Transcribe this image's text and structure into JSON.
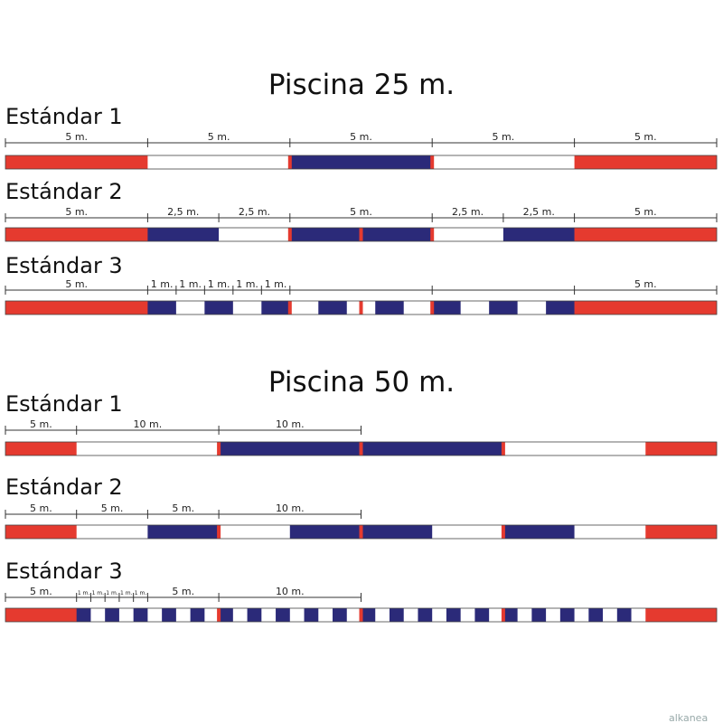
{
  "colors": {
    "red": "#e53a2f",
    "blue": "#2b2a79",
    "white": "#ffffff",
    "outline": "#444444"
  },
  "pool25": {
    "title": "Piscina 25 m.",
    "length_m": 25,
    "standards": [
      {
        "label": "Estándar 1",
        "dims": [
          {
            "from": 0,
            "to": 5,
            "text": "5 m."
          },
          {
            "from": 5,
            "to": 10,
            "text": "5 m."
          },
          {
            "from": 10,
            "to": 15,
            "text": "5 m."
          },
          {
            "from": 15,
            "to": 20,
            "text": "5 m."
          },
          {
            "from": 20,
            "to": 25,
            "text": "5 m."
          }
        ],
        "segments": [
          {
            "from": 0,
            "to": 5,
            "color": "red"
          },
          {
            "from": 5,
            "to": 10,
            "color": "white"
          },
          {
            "from": 10,
            "to": 15,
            "color": "blue"
          },
          {
            "from": 15,
            "to": 20,
            "color": "white"
          },
          {
            "from": 20,
            "to": 25,
            "color": "red"
          }
        ],
        "markers": [
          10,
          15
        ]
      },
      {
        "label": "Estándar 2",
        "dims": [
          {
            "from": 0,
            "to": 5,
            "text": "5 m."
          },
          {
            "from": 5,
            "to": 7.5,
            "text": "2,5 m."
          },
          {
            "from": 7.5,
            "to": 10,
            "text": "2,5 m."
          },
          {
            "from": 10,
            "to": 15,
            "text": "5 m."
          },
          {
            "from": 15,
            "to": 17.5,
            "text": "2,5 m."
          },
          {
            "from": 17.5,
            "to": 20,
            "text": "2,5 m."
          },
          {
            "from": 20,
            "to": 25,
            "text": "5 m."
          }
        ],
        "segments": [
          {
            "from": 0,
            "to": 5,
            "color": "red"
          },
          {
            "from": 5,
            "to": 7.5,
            "color": "blue"
          },
          {
            "from": 7.5,
            "to": 10,
            "color": "white"
          },
          {
            "from": 10,
            "to": 12.5,
            "color": "blue"
          },
          {
            "from": 12.5,
            "to": 15,
            "color": "blue"
          },
          {
            "from": 15,
            "to": 17.5,
            "color": "white"
          },
          {
            "from": 17.5,
            "to": 20,
            "color": "blue"
          },
          {
            "from": 20,
            "to": 25,
            "color": "red"
          }
        ],
        "markers": [
          10,
          12.5,
          15
        ]
      },
      {
        "label": "Estándar 3",
        "dims": [
          {
            "from": 0,
            "to": 5,
            "text": "5 m."
          },
          {
            "from": 5,
            "to": 6,
            "text": "1 m."
          },
          {
            "from": 6,
            "to": 7,
            "text": "1 m."
          },
          {
            "from": 7,
            "to": 8,
            "text": "1 m."
          },
          {
            "from": 8,
            "to": 9,
            "text": "1 m."
          },
          {
            "from": 9,
            "to": 10,
            "text": "1 m."
          },
          {
            "from": 10,
            "to": 15,
            "text": ""
          },
          {
            "from": 15,
            "to": 20,
            "text": ""
          },
          {
            "from": 20,
            "to": 25,
            "text": "5 m."
          }
        ],
        "segments": [
          {
            "from": 0,
            "to": 5,
            "color": "red"
          },
          {
            "from": 5,
            "to": 20,
            "pattern": "alt1",
            "first": "blue"
          },
          {
            "from": 20,
            "to": 25,
            "color": "red"
          }
        ],
        "markers": [
          10,
          12.5,
          15
        ]
      }
    ]
  },
  "pool50": {
    "title": "Piscina 50 m.",
    "length_m": 50,
    "standards": [
      {
        "label": "Estándar 1",
        "dims": [
          {
            "from": 0,
            "to": 5,
            "text": "5 m."
          },
          {
            "from": 5,
            "to": 15,
            "text": "10 m."
          },
          {
            "from": 15,
            "to": 25,
            "text": "10 m."
          }
        ],
        "segments": [
          {
            "from": 0,
            "to": 5,
            "color": "red"
          },
          {
            "from": 5,
            "to": 15,
            "color": "white"
          },
          {
            "from": 15,
            "to": 25,
            "color": "blue"
          },
          {
            "from": 25,
            "to": 35,
            "color": "blue"
          },
          {
            "from": 35,
            "to": 45,
            "color": "white"
          },
          {
            "from": 45,
            "to": 50,
            "color": "red"
          }
        ],
        "markers": [
          15,
          25,
          35
        ]
      },
      {
        "label": "Estándar 2",
        "dims": [
          {
            "from": 0,
            "to": 5,
            "text": "5 m."
          },
          {
            "from": 5,
            "to": 10,
            "text": "5 m."
          },
          {
            "from": 10,
            "to": 15,
            "text": "5 m."
          },
          {
            "from": 15,
            "to": 25,
            "text": "10 m."
          }
        ],
        "segments": [
          {
            "from": 0,
            "to": 5,
            "color": "red"
          },
          {
            "from": 5,
            "to": 10,
            "color": "white"
          },
          {
            "from": 10,
            "to": 15,
            "color": "blue"
          },
          {
            "from": 15,
            "to": 20,
            "color": "white"
          },
          {
            "from": 20,
            "to": 25,
            "color": "blue"
          },
          {
            "from": 25,
            "to": 30,
            "color": "blue"
          },
          {
            "from": 30,
            "to": 35,
            "color": "white"
          },
          {
            "from": 35,
            "to": 40,
            "color": "blue"
          },
          {
            "from": 40,
            "to": 45,
            "color": "white"
          },
          {
            "from": 45,
            "to": 50,
            "color": "red"
          }
        ],
        "markers": [
          15,
          25,
          35
        ]
      },
      {
        "label": "Estándar 3",
        "dims": [
          {
            "from": 0,
            "to": 5,
            "text": "5 m."
          },
          {
            "from": 5,
            "to": 6,
            "text": "1 m."
          },
          {
            "from": 6,
            "to": 7,
            "text": "1 m."
          },
          {
            "from": 7,
            "to": 8,
            "text": "1 m."
          },
          {
            "from": 8,
            "to": 9,
            "text": "1 m."
          },
          {
            "from": 9,
            "to": 10,
            "text": "1 m."
          },
          {
            "from": 10,
            "to": 15,
            "text": "5 m."
          },
          {
            "from": 15,
            "to": 25,
            "text": "10 m."
          }
        ],
        "segments": [
          {
            "from": 0,
            "to": 5,
            "color": "red"
          },
          {
            "from": 5,
            "to": 45,
            "pattern": "alt1",
            "first": "blue"
          },
          {
            "from": 45,
            "to": 50,
            "color": "red"
          }
        ],
        "markers": [
          15,
          25,
          35
        ]
      }
    ]
  },
  "watermark": "alkanea"
}
